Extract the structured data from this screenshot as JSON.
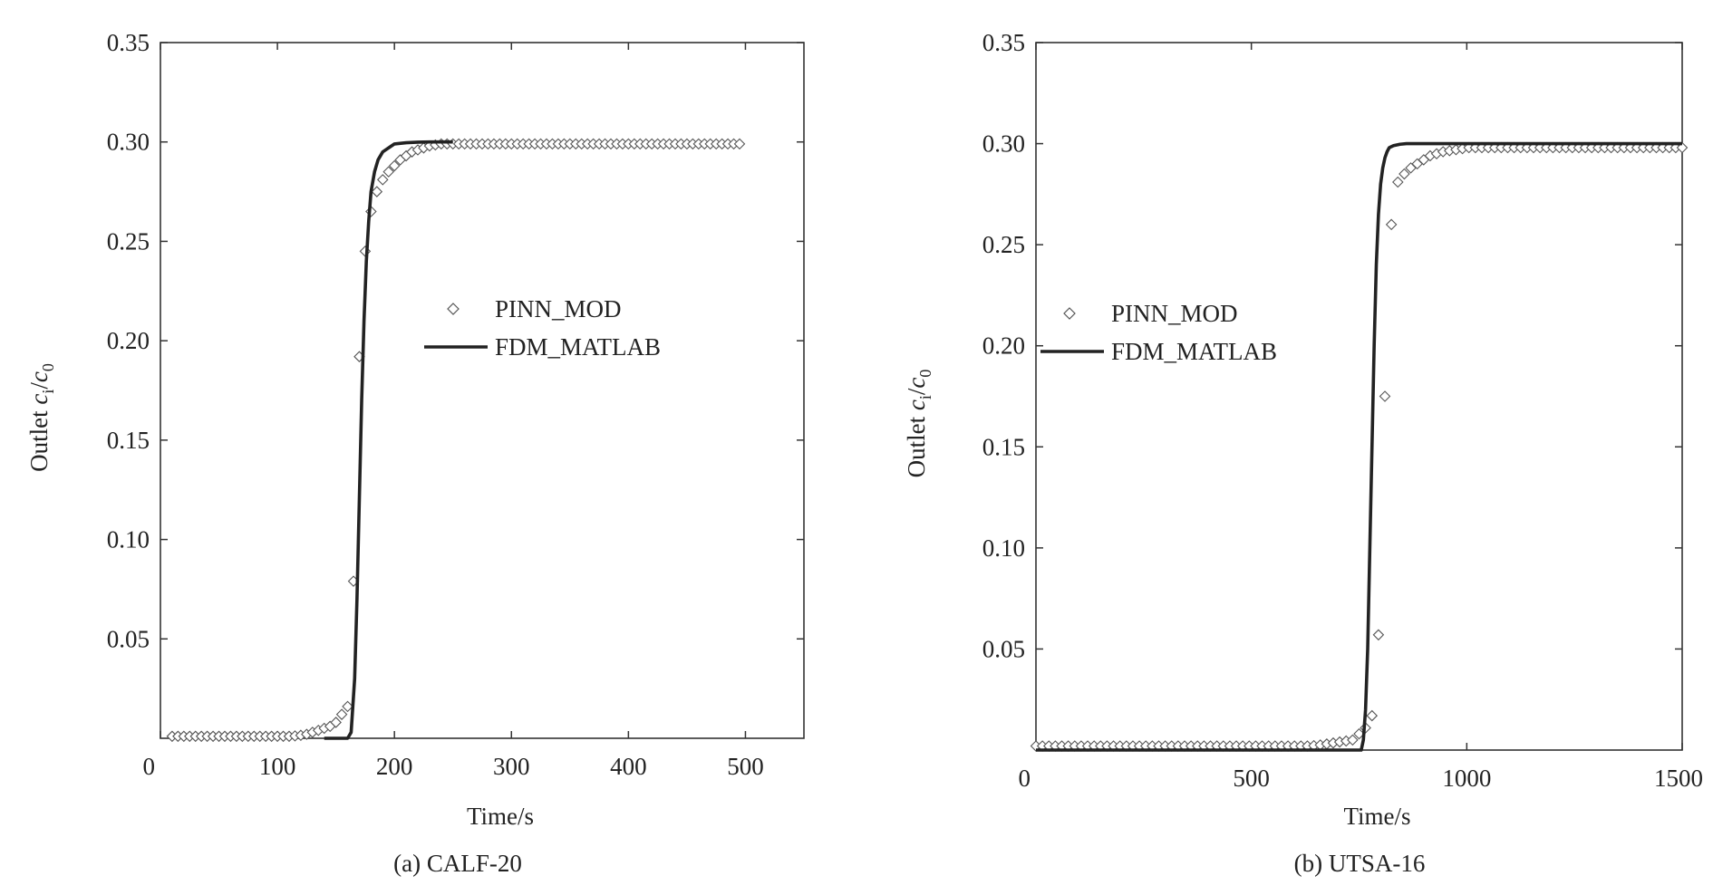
{
  "chart_data": [
    {
      "type": "line",
      "caption": "(a)  CALF-20",
      "xlabel": "Time/s",
      "ylabel": "Outlet c_i/c_0",
      "xlim": [
        0,
        550
      ],
      "ylim": [
        0,
        0.35
      ],
      "xticks": [
        0,
        100,
        200,
        300,
        400,
        500
      ],
      "xtick_labels": [
        "0",
        "100",
        "200",
        "300",
        "400",
        "500"
      ],
      "yticks": [
        0.05,
        0.1,
        0.15,
        0.2,
        0.25,
        0.3,
        0.35
      ],
      "ytick_labels": [
        "0.05",
        "0.10",
        "0.15",
        "0.20",
        "0.25",
        "0.30",
        "0.35"
      ],
      "legend_position": "center-right",
      "series": [
        {
          "name": "PINN_MOD",
          "style": "diamond-markers",
          "x": [
            10,
            15,
            20,
            25,
            30,
            35,
            40,
            45,
            50,
            55,
            60,
            65,
            70,
            75,
            80,
            85,
            90,
            95,
            100,
            105,
            110,
            115,
            120,
            125,
            130,
            135,
            140,
            145,
            150,
            155,
            160,
            165,
            170,
            175,
            180,
            185,
            190,
            195,
            200,
            205,
            210,
            215,
            220,
            225,
            230,
            235,
            240,
            245,
            250,
            255,
            260,
            265,
            270,
            275,
            280,
            285,
            290,
            295,
            300,
            305,
            310,
            315,
            320,
            325,
            330,
            335,
            340,
            345,
            350,
            355,
            360,
            365,
            370,
            375,
            380,
            385,
            390,
            395,
            400,
            405,
            410,
            415,
            420,
            425,
            430,
            435,
            440,
            445,
            450,
            455,
            460,
            465,
            470,
            475,
            480,
            485,
            490,
            495
          ],
          "y": [
            0.001,
            0.001,
            0.001,
            0.001,
            0.001,
            0.001,
            0.001,
            0.001,
            0.001,
            0.001,
            0.001,
            0.001,
            0.001,
            0.001,
            0.001,
            0.001,
            0.001,
            0.001,
            0.001,
            0.001,
            0.001,
            0.0012,
            0.0015,
            0.002,
            0.003,
            0.004,
            0.005,
            0.006,
            0.008,
            0.012,
            0.016,
            0.079,
            0.192,
            0.245,
            0.265,
            0.275,
            0.281,
            0.285,
            0.288,
            0.291,
            0.293,
            0.295,
            0.296,
            0.297,
            0.298,
            0.2985,
            0.299,
            0.299,
            0.299,
            0.299,
            0.299,
            0.299,
            0.299,
            0.299,
            0.299,
            0.299,
            0.299,
            0.299,
            0.299,
            0.299,
            0.299,
            0.299,
            0.299,
            0.299,
            0.299,
            0.299,
            0.299,
            0.299,
            0.299,
            0.299,
            0.299,
            0.299,
            0.299,
            0.299,
            0.299,
            0.299,
            0.299,
            0.299,
            0.299,
            0.299,
            0.299,
            0.299,
            0.299,
            0.299,
            0.299,
            0.299,
            0.299,
            0.299,
            0.299,
            0.299,
            0.299,
            0.299,
            0.299,
            0.299,
            0.299,
            0.299,
            0.299,
            0.299
          ]
        },
        {
          "name": "FDM_MATLAB",
          "style": "solid-line",
          "x": [
            140,
            150,
            160,
            163,
            166,
            168,
            170,
            172,
            174,
            176,
            178,
            180,
            183,
            186,
            190,
            195,
            200,
            210,
            220,
            230,
            240,
            250
          ],
          "y": [
            0,
            0,
            0,
            0.003,
            0.03,
            0.07,
            0.12,
            0.17,
            0.21,
            0.24,
            0.26,
            0.275,
            0.285,
            0.291,
            0.295,
            0.297,
            0.299,
            0.2996,
            0.2999,
            0.3,
            0.3,
            0.3
          ]
        }
      ]
    },
    {
      "type": "line",
      "caption": "(b)  UTSA-16",
      "xlabel": "Time/s",
      "ylabel": "Outlet c_i/c_0",
      "xlim": [
        0,
        1500
      ],
      "ylim": [
        0,
        0.35
      ],
      "xticks": [
        0,
        500,
        1000,
        1500
      ],
      "xtick_labels": [
        "0",
        "500",
        "1000",
        "1500"
      ],
      "yticks": [
        0.05,
        0.1,
        0.15,
        0.2,
        0.25,
        0.3,
        0.35
      ],
      "ytick_labels": [
        "0.05",
        "0.10",
        "0.15",
        "0.20",
        "0.25",
        "0.30",
        "0.35"
      ],
      "legend_position": "center-left",
      "series": [
        {
          "name": "PINN_MOD",
          "style": "diamond-markers",
          "x": [
            0,
            15,
            30,
            45,
            60,
            75,
            90,
            105,
            120,
            135,
            150,
            165,
            180,
            195,
            210,
            225,
            240,
            255,
            270,
            285,
            300,
            315,
            330,
            345,
            360,
            375,
            390,
            405,
            420,
            435,
            450,
            465,
            480,
            495,
            510,
            525,
            540,
            555,
            570,
            585,
            600,
            615,
            630,
            645,
            660,
            675,
            690,
            705,
            720,
            735,
            750,
            765,
            780,
            795,
            810,
            825,
            840,
            855,
            870,
            885,
            900,
            915,
            930,
            945,
            960,
            975,
            990,
            1005,
            1020,
            1035,
            1050,
            1065,
            1080,
            1095,
            1110,
            1125,
            1140,
            1155,
            1170,
            1185,
            1200,
            1215,
            1230,
            1245,
            1260,
            1275,
            1290,
            1305,
            1320,
            1335,
            1350,
            1365,
            1380,
            1395,
            1410,
            1425,
            1440,
            1455,
            1470,
            1485,
            1500
          ],
          "y": [
            0.002,
            0.002,
            0.002,
            0.002,
            0.002,
            0.002,
            0.002,
            0.002,
            0.002,
            0.002,
            0.002,
            0.002,
            0.002,
            0.002,
            0.002,
            0.002,
            0.002,
            0.002,
            0.002,
            0.002,
            0.002,
            0.002,
            0.002,
            0.002,
            0.002,
            0.002,
            0.002,
            0.002,
            0.002,
            0.002,
            0.002,
            0.002,
            0.002,
            0.002,
            0.002,
            0.002,
            0.002,
            0.002,
            0.002,
            0.002,
            0.002,
            0.002,
            0.002,
            0.0022,
            0.0025,
            0.003,
            0.0035,
            0.004,
            0.0045,
            0.005,
            0.008,
            0.011,
            0.017,
            0.057,
            0.175,
            0.26,
            0.281,
            0.285,
            0.288,
            0.29,
            0.292,
            0.294,
            0.295,
            0.296,
            0.2965,
            0.297,
            0.2975,
            0.298,
            0.298,
            0.298,
            0.298,
            0.298,
            0.298,
            0.298,
            0.298,
            0.298,
            0.298,
            0.298,
            0.298,
            0.298,
            0.298,
            0.298,
            0.298,
            0.298,
            0.298,
            0.298,
            0.298,
            0.298,
            0.298,
            0.298,
            0.298,
            0.298,
            0.298,
            0.298,
            0.298,
            0.298,
            0.298,
            0.298,
            0.298,
            0.298,
            0.298
          ]
        },
        {
          "name": "FDM_MATLAB",
          "style": "solid-line",
          "x": [
            0,
            740,
            755,
            760,
            765,
            770,
            775,
            780,
            785,
            790,
            795,
            800,
            805,
            810,
            815,
            820,
            830,
            845,
            860,
            900,
            1000,
            1500
          ],
          "y": [
            0,
            0,
            0,
            0.005,
            0.02,
            0.05,
            0.1,
            0.15,
            0.2,
            0.24,
            0.265,
            0.28,
            0.288,
            0.293,
            0.296,
            0.298,
            0.299,
            0.2997,
            0.3,
            0.3,
            0.3,
            0.3
          ]
        }
      ]
    }
  ]
}
